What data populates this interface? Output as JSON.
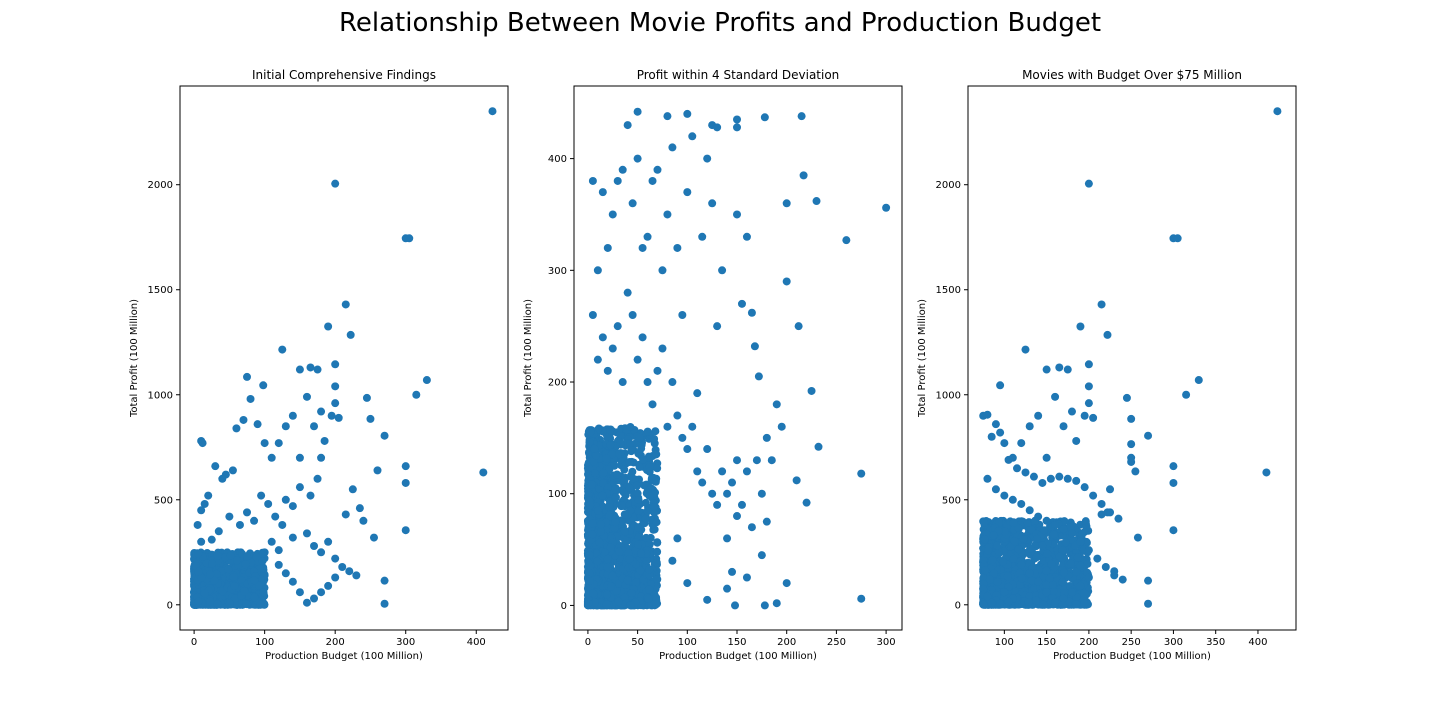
{
  "figure": {
    "title": "Relationship Between Movie Profits and Production Budget"
  },
  "chart_data": [
    {
      "type": "scatter",
      "title": "Initial Comprehensive Findings",
      "xlabel": "Production Budget (100 Million)",
      "ylabel": "Total Profit (100 Million)",
      "xlim": [
        -20,
        445
      ],
      "ylim": [
        -120,
        2470
      ],
      "xticks": [
        0,
        100,
        200,
        300,
        400
      ],
      "yticks": [
        0,
        500,
        1000,
        1500,
        2000
      ],
      "color": "#1f77b4",
      "dense_region": {
        "x": [
          0,
          100
        ],
        "y": [
          0,
          250
        ],
        "note": "dense cluster of points"
      },
      "points": [
        [
          10,
          780
        ],
        [
          12,
          770
        ],
        [
          75,
          1085
        ],
        [
          98,
          1045
        ],
        [
          125,
          1215
        ],
        [
          150,
          1120
        ],
        [
          165,
          1130
        ],
        [
          175,
          1120
        ],
        [
          190,
          1325
        ],
        [
          200,
          2005
        ],
        [
          200,
          1145
        ],
        [
          200,
          1040
        ],
        [
          215,
          1430
        ],
        [
          222,
          1285
        ],
        [
          245,
          985
        ],
        [
          250,
          885
        ],
        [
          260,
          640
        ],
        [
          270,
          805
        ],
        [
          300,
          1745
        ],
        [
          305,
          1745
        ],
        [
          300,
          660
        ],
        [
          300,
          580
        ],
        [
          300,
          355
        ],
        [
          315,
          1000
        ],
        [
          330,
          1070
        ],
        [
          410,
          630
        ],
        [
          423,
          2350
        ],
        [
          270,
          5
        ],
        [
          270,
          115
        ],
        [
          255,
          320
        ],
        [
          230,
          140
        ],
        [
          225,
          550
        ],
        [
          215,
          430
        ],
        [
          205,
          890
        ],
        [
          200,
          960
        ],
        [
          195,
          900
        ],
        [
          185,
          780
        ],
        [
          180,
          920
        ],
        [
          170,
          850
        ],
        [
          160,
          990
        ],
        [
          150,
          700
        ],
        [
          140,
          900
        ],
        [
          130,
          850
        ],
        [
          120,
          770
        ],
        [
          110,
          700
        ],
        [
          100,
          770
        ],
        [
          90,
          860
        ],
        [
          80,
          980
        ],
        [
          70,
          880
        ],
        [
          60,
          840
        ],
        [
          55,
          640
        ],
        [
          45,
          620
        ],
        [
          40,
          600
        ],
        [
          30,
          660
        ],
        [
          20,
          520
        ],
        [
          15,
          480
        ],
        [
          10,
          450
        ],
        [
          5,
          380
        ],
        [
          240,
          400
        ],
        [
          235,
          460
        ],
        [
          180,
          700
        ],
        [
          175,
          600
        ],
        [
          165,
          520
        ],
        [
          150,
          560
        ],
        [
          140,
          470
        ],
        [
          130,
          500
        ],
        [
          125,
          380
        ],
        [
          115,
          420
        ],
        [
          105,
          480
        ],
        [
          95,
          520
        ],
        [
          85,
          400
        ],
        [
          75,
          440
        ],
        [
          65,
          380
        ],
        [
          50,
          420
        ],
        [
          35,
          350
        ],
        [
          25,
          310
        ],
        [
          10,
          300
        ],
        [
          110,
          300
        ],
        [
          120,
          260
        ],
        [
          140,
          320
        ],
        [
          160,
          340
        ],
        [
          170,
          280
        ],
        [
          180,
          250
        ],
        [
          190,
          300
        ],
        [
          200,
          220
        ],
        [
          210,
          180
        ],
        [
          220,
          160
        ],
        [
          200,
          130
        ],
        [
          190,
          90
        ],
        [
          180,
          60
        ],
        [
          170,
          30
        ],
        [
          160,
          10
        ],
        [
          150,
          60
        ],
        [
          140,
          110
        ],
        [
          130,
          150
        ],
        [
          120,
          190
        ]
      ]
    },
    {
      "type": "scatter",
      "title": "Profit within 4 Standard Deviation",
      "xlabel": "Production Budget (100 Million)",
      "ylabel": "Total Profit (100 Million)",
      "xlim": [
        -14,
        316
      ],
      "ylim": [
        -22,
        465
      ],
      "xticks": [
        0,
        50,
        100,
        150,
        200,
        250,
        300
      ],
      "yticks": [
        0,
        100,
        200,
        300,
        400
      ],
      "color": "#1f77b4",
      "dense_region": {
        "x": [
          0,
          70
        ],
        "y": [
          0,
          160
        ],
        "note": "dense cluster of points"
      },
      "points": [
        [
          50,
          442
        ],
        [
          80,
          438
        ],
        [
          100,
          440
        ],
        [
          125,
          430
        ],
        [
          130,
          428
        ],
        [
          150,
          435
        ],
        [
          150,
          428
        ],
        [
          178,
          437
        ],
        [
          200,
          360
        ],
        [
          215,
          438
        ],
        [
          217,
          385
        ],
        [
          230,
          362
        ],
        [
          260,
          327
        ],
        [
          300,
          356
        ],
        [
          275,
          118
        ],
        [
          275,
          6
        ],
        [
          220,
          92
        ],
        [
          225,
          192
        ],
        [
          232,
          142
        ],
        [
          210,
          112
        ],
        [
          212,
          250
        ],
        [
          200,
          290
        ],
        [
          200,
          20
        ],
        [
          190,
          2
        ],
        [
          180,
          75
        ],
        [
          178,
          0
        ],
        [
          175,
          45
        ],
        [
          172,
          205
        ],
        [
          168,
          232
        ],
        [
          165,
          262
        ],
        [
          160,
          330
        ],
        [
          155,
          270
        ],
        [
          150,
          350
        ],
        [
          150,
          80
        ],
        [
          148,
          0
        ],
        [
          145,
          30
        ],
        [
          140,
          60
        ],
        [
          135,
          300
        ],
        [
          130,
          250
        ],
        [
          125,
          360
        ],
        [
          120,
          400
        ],
        [
          115,
          330
        ],
        [
          110,
          190
        ],
        [
          105,
          420
        ],
        [
          100,
          370
        ],
        [
          95,
          260
        ],
        [
          90,
          320
        ],
        [
          85,
          410
        ],
        [
          80,
          350
        ],
        [
          75,
          300
        ],
        [
          70,
          390
        ],
        [
          65,
          380
        ],
        [
          60,
          330
        ],
        [
          55,
          320
        ],
        [
          50,
          400
        ],
        [
          45,
          360
        ],
        [
          40,
          430
        ],
        [
          35,
          390
        ],
        [
          30,
          380
        ],
        [
          25,
          350
        ],
        [
          20,
          320
        ],
        [
          15,
          370
        ],
        [
          10,
          300
        ],
        [
          5,
          380
        ],
        [
          5,
          260
        ],
        [
          10,
          220
        ],
        [
          15,
          240
        ],
        [
          20,
          210
        ],
        [
          25,
          230
        ],
        [
          30,
          250
        ],
        [
          35,
          200
        ],
        [
          40,
          280
        ],
        [
          45,
          260
        ],
        [
          50,
          220
        ],
        [
          55,
          240
        ],
        [
          60,
          200
        ],
        [
          65,
          180
        ],
        [
          70,
          210
        ],
        [
          75,
          230
        ],
        [
          80,
          160
        ],
        [
          85,
          200
        ],
        [
          90,
          170
        ],
        [
          95,
          150
        ],
        [
          100,
          140
        ],
        [
          105,
          160
        ],
        [
          110,
          120
        ],
        [
          115,
          110
        ],
        [
          120,
          140
        ],
        [
          125,
          100
        ],
        [
          130,
          90
        ],
        [
          135,
          120
        ],
        [
          140,
          100
        ],
        [
          145,
          110
        ],
        [
          150,
          130
        ],
        [
          155,
          90
        ],
        [
          160,
          120
        ],
        [
          165,
          70
        ],
        [
          170,
          130
        ],
        [
          175,
          100
        ],
        [
          180,
          150
        ],
        [
          185,
          130
        ],
        [
          190,
          180
        ],
        [
          195,
          160
        ],
        [
          160,
          25
        ],
        [
          140,
          15
        ],
        [
          120,
          5
        ],
        [
          100,
          20
        ],
        [
          90,
          60
        ],
        [
          85,
          40
        ]
      ]
    },
    {
      "type": "scatter",
      "title": "Movies with Budget Over $75 Million",
      "xlabel": "Production Budget (100 Million)",
      "ylabel": "Total Profit (100 Million)",
      "xlim": [
        57,
        445
      ],
      "ylim": [
        -120,
        2470
      ],
      "xticks": [
        100,
        150,
        200,
        250,
        300,
        350,
        400
      ],
      "yticks": [
        0,
        500,
        1000,
        1500,
        2000
      ],
      "color": "#1f77b4",
      "dense_region": {
        "x": [
          75,
          200
        ],
        "y": [
          0,
          400
        ],
        "note": "dense cluster of points"
      },
      "points": [
        [
          75,
          900
        ],
        [
          80,
          905
        ],
        [
          95,
          1045
        ],
        [
          125,
          1215
        ],
        [
          150,
          1120
        ],
        [
          165,
          1130
        ],
        [
          175,
          1120
        ],
        [
          190,
          1325
        ],
        [
          200,
          2005
        ],
        [
          200,
          1145
        ],
        [
          200,
          1040
        ],
        [
          215,
          1430
        ],
        [
          222,
          1285
        ],
        [
          245,
          985
        ],
        [
          250,
          885
        ],
        [
          250,
          765
        ],
        [
          250,
          700
        ],
        [
          250,
          680
        ],
        [
          255,
          635
        ],
        [
          270,
          805
        ],
        [
          300,
          1745
        ],
        [
          305,
          1745
        ],
        [
          300,
          660
        ],
        [
          300,
          580
        ],
        [
          300,
          355
        ],
        [
          315,
          1000
        ],
        [
          330,
          1070
        ],
        [
          410,
          630
        ],
        [
          423,
          2350
        ],
        [
          270,
          5
        ],
        [
          270,
          115
        ],
        [
          258,
          320
        ],
        [
          230,
          140
        ],
        [
          225,
          550
        ],
        [
          215,
          430
        ],
        [
          222,
          440
        ],
        [
          205,
          890
        ],
        [
          200,
          960
        ],
        [
          195,
          900
        ],
        [
          185,
          780
        ],
        [
          180,
          920
        ],
        [
          170,
          850
        ],
        [
          160,
          990
        ],
        [
          150,
          700
        ],
        [
          140,
          900
        ],
        [
          130,
          850
        ],
        [
          120,
          770
        ],
        [
          110,
          700
        ],
        [
          100,
          770
        ],
        [
          90,
          860
        ],
        [
          85,
          800
        ],
        [
          95,
          820
        ],
        [
          105,
          690
        ],
        [
          115,
          650
        ],
        [
          125,
          630
        ],
        [
          135,
          610
        ],
        [
          145,
          580
        ],
        [
          155,
          600
        ],
        [
          165,
          610
        ],
        [
          175,
          600
        ],
        [
          185,
          590
        ],
        [
          195,
          560
        ],
        [
          205,
          520
        ],
        [
          215,
          480
        ],
        [
          225,
          440
        ],
        [
          235,
          410
        ],
        [
          80,
          600
        ],
        [
          90,
          550
        ],
        [
          100,
          520
        ],
        [
          110,
          500
        ],
        [
          120,
          480
        ],
        [
          130,
          450
        ],
        [
          140,
          420
        ],
        [
          150,
          400
        ],
        [
          160,
          380
        ],
        [
          170,
          360
        ],
        [
          180,
          340
        ],
        [
          190,
          300
        ],
        [
          200,
          260
        ],
        [
          210,
          220
        ],
        [
          220,
          180
        ],
        [
          230,
          160
        ],
        [
          240,
          120
        ],
        [
          200,
          130
        ],
        [
          190,
          90
        ],
        [
          180,
          60
        ],
        [
          170,
          30
        ],
        [
          160,
          10
        ],
        [
          150,
          60
        ],
        [
          140,
          110
        ],
        [
          130,
          150
        ],
        [
          120,
          190
        ],
        [
          110,
          30
        ],
        [
          100,
          60
        ],
        [
          90,
          20
        ],
        [
          80,
          40
        ],
        [
          85,
          10
        ],
        [
          95,
          5
        ],
        [
          105,
          15
        ]
      ]
    }
  ]
}
